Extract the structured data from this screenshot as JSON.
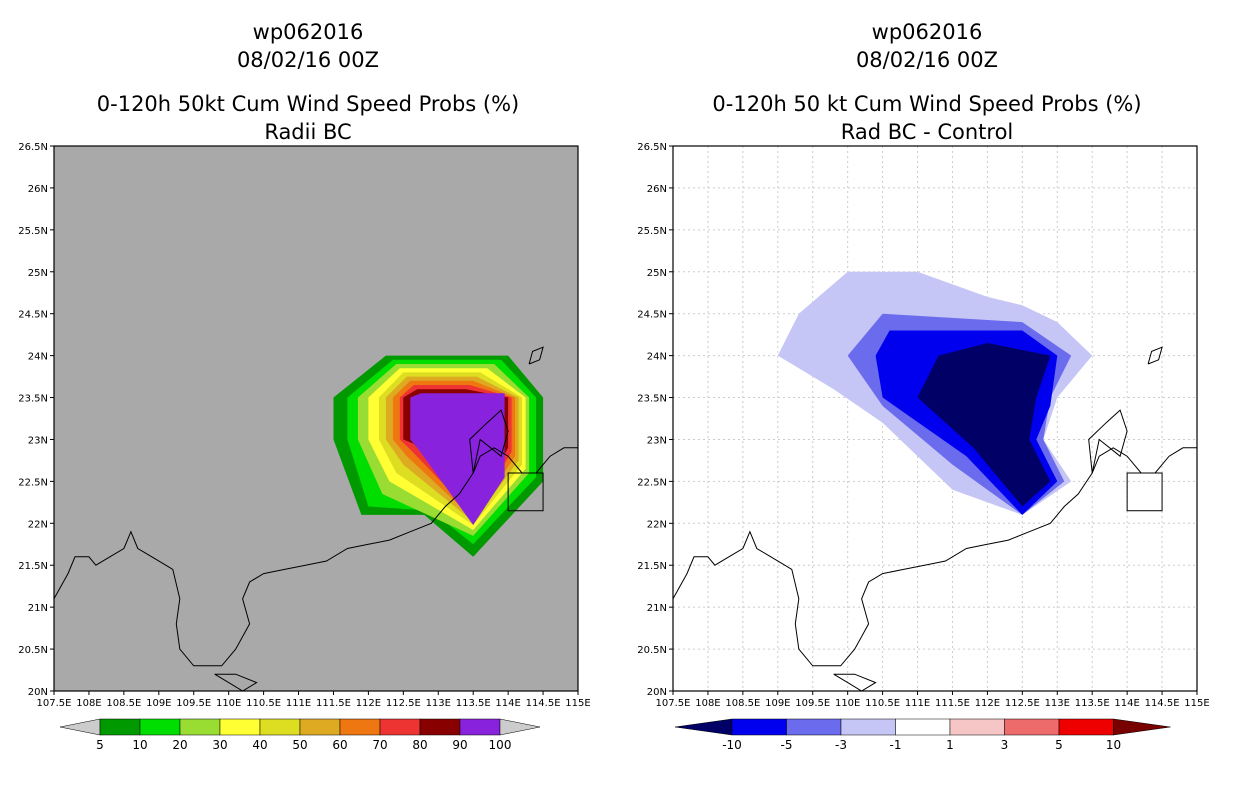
{
  "chart_data": [
    {
      "type": "filled-contour-map",
      "storm_id": "wp062016",
      "date": "08/02/16 00Z",
      "title": "0-120h 50kt Cum Wind Speed Probs (%)",
      "subtitle": "Radii BC",
      "background": "#a9a9a9",
      "x_ticks": [
        "107.5E",
        "108E",
        "108.5E",
        "109E",
        "109.5E",
        "110E",
        "110.5E",
        "111E",
        "111.5E",
        "112E",
        "112.5E",
        "113E",
        "113.5E",
        "114E",
        "114.5E",
        "115E"
      ],
      "y_ticks": [
        "20N",
        "20.5N",
        "21N",
        "21.5N",
        "22N",
        "22.5N",
        "23N",
        "23.5N",
        "24N",
        "24.5N",
        "25N",
        "25.5N",
        "26N",
        "26.5N"
      ],
      "xlim": [
        107.5,
        115
      ],
      "ylim": [
        20,
        26.5
      ],
      "levels": [
        "5",
        "10",
        "20",
        "30",
        "40",
        "50",
        "60",
        "70",
        "80",
        "90",
        "100"
      ],
      "colors": [
        "#cccccc",
        "#009900",
        "#00dd00",
        "#99dd33",
        "#ffff33",
        "#dddd22",
        "#ddaa22",
        "#ee7711",
        "#ee3333",
        "#880000",
        "#8822dd",
        "#cccccc"
      ],
      "contours": [
        {
          "level": 5,
          "points": [
            [
              111.5,
              23.5
            ],
            [
              112.25,
              24
            ],
            [
              114,
              24
            ],
            [
              114.5,
              23.5
            ],
            [
              114.5,
              22.5
            ],
            [
              113.5,
              21.6
            ],
            [
              112.8,
              22.1
            ],
            [
              111.9,
              22.1
            ],
            [
              111.5,
              23
            ]
          ]
        },
        {
          "level": 10,
          "points": [
            [
              111.7,
              23.5
            ],
            [
              112.35,
              23.95
            ],
            [
              113.9,
              23.95
            ],
            [
              114.4,
              23.5
            ],
            [
              114.4,
              22.55
            ],
            [
              113.5,
              21.75
            ],
            [
              112.9,
              22.15
            ],
            [
              112.0,
              22.2
            ],
            [
              111.7,
              23
            ]
          ]
        },
        {
          "level": 20,
          "points": [
            [
              111.85,
              23.5
            ],
            [
              112.4,
              23.9
            ],
            [
              113.8,
              23.9
            ],
            [
              114.3,
              23.5
            ],
            [
              114.3,
              22.6
            ],
            [
              113.5,
              21.85
            ],
            [
              112.2,
              22.35
            ],
            [
              111.85,
              23
            ]
          ]
        },
        {
          "level": 30,
          "points": [
            [
              112.0,
              23.5
            ],
            [
              112.45,
              23.85
            ],
            [
              113.7,
              23.85
            ],
            [
              114.25,
              23.5
            ],
            [
              114.25,
              22.65
            ],
            [
              113.5,
              21.92
            ],
            [
              112.3,
              22.5
            ],
            [
              112.0,
              23
            ]
          ]
        },
        {
          "level": 40,
          "points": [
            [
              112.15,
              23.5
            ],
            [
              112.5,
              23.8
            ],
            [
              113.6,
              23.8
            ],
            [
              114.2,
              23.5
            ],
            [
              114.2,
              22.7
            ],
            [
              113.5,
              21.98
            ],
            [
              112.4,
              22.6
            ],
            [
              112.15,
              23
            ]
          ]
        },
        {
          "level": 50,
          "points": [
            [
              112.25,
              23.5
            ],
            [
              112.55,
              23.75
            ],
            [
              113.55,
              23.75
            ],
            [
              114.15,
              23.5
            ],
            [
              114.15,
              22.75
            ],
            [
              113.5,
              22.02
            ],
            [
              112.5,
              22.7
            ],
            [
              112.25,
              23
            ]
          ]
        },
        {
          "level": 60,
          "points": [
            [
              112.35,
              23.5
            ],
            [
              112.6,
              23.7
            ],
            [
              113.5,
              23.7
            ],
            [
              114.1,
              23.5
            ],
            [
              114.1,
              22.8
            ],
            [
              113.5,
              22.06
            ],
            [
              112.55,
              22.8
            ],
            [
              112.35,
              23
            ]
          ]
        },
        {
          "level": 70,
          "points": [
            [
              112.45,
              23.5
            ],
            [
              112.65,
              23.65
            ],
            [
              113.45,
              23.65
            ],
            [
              114.05,
              23.5
            ],
            [
              114.05,
              22.85
            ],
            [
              113.5,
              22.1
            ],
            [
              112.6,
              22.88
            ],
            [
              112.45,
              23
            ]
          ]
        },
        {
          "level": 80,
          "points": [
            [
              112.5,
              23.5
            ],
            [
              112.7,
              23.6
            ],
            [
              113.4,
              23.6
            ],
            [
              114.0,
              23.5
            ],
            [
              114.0,
              22.9
            ],
            [
              113.5,
              22.15
            ],
            [
              112.65,
              22.95
            ],
            [
              112.5,
              23
            ]
          ]
        },
        {
          "level": 90,
          "points": [
            [
              112.6,
              23.5
            ],
            [
              112.75,
              23.55
            ],
            [
              113.3,
              23.55
            ],
            [
              113.95,
              23.55
            ],
            [
              113.95,
              22.55
            ],
            [
              113.5,
              21.98
            ],
            [
              112.7,
              22.9
            ],
            [
              112.6,
              23
            ]
          ]
        }
      ],
      "colorbar_labels": [
        "5",
        "10",
        "20",
        "30",
        "40",
        "50",
        "60",
        "70",
        "80",
        "90",
        "100"
      ]
    },
    {
      "type": "filled-contour-map",
      "storm_id": "wp062016",
      "date": "08/02/16 00Z",
      "title": "0-120h 50 kt Cum Wind Speed Probs (%)",
      "subtitle": "Rad BC - Control",
      "background": "#ffffff",
      "x_ticks": [
        "107.5E",
        "108E",
        "108.5E",
        "109E",
        "109.5E",
        "110E",
        "110.5E",
        "111E",
        "111.5E",
        "112E",
        "112.5E",
        "113E",
        "113.5E",
        "114E",
        "114.5E",
        "115E"
      ],
      "y_ticks": [
        "20N",
        "20.5N",
        "21N",
        "21.5N",
        "22N",
        "22.5N",
        "23N",
        "23.5N",
        "24N",
        "24.5N",
        "25N",
        "25.5N",
        "26N",
        "26.5N"
      ],
      "xlim": [
        107.5,
        115
      ],
      "ylim": [
        20,
        26.5
      ],
      "levels": [
        "-10",
        "-5",
        "-3",
        "-1",
        "1",
        "3",
        "5",
        "10"
      ],
      "colors": [
        "#000066",
        "#0000ee",
        "#6b6bee",
        "#c6c6f6",
        "#ffffff",
        "#f6c6c6",
        "#ee6b6b",
        "#ee0000",
        "#770000"
      ],
      "contours": [
        {
          "level": -1,
          "points": [
            [
              109.0,
              24
            ],
            [
              109.3,
              24.5
            ],
            [
              110.0,
              25
            ],
            [
              111.0,
              25
            ],
            [
              112.0,
              24.7
            ],
            [
              112.5,
              24.6
            ],
            [
              113.0,
              24.4
            ],
            [
              113.5,
              24
            ],
            [
              113.0,
              23.5
            ],
            [
              112.8,
              23.0
            ],
            [
              113.2,
              22.5
            ],
            [
              112.5,
              22.1
            ],
            [
              111.5,
              22.4
            ],
            [
              110.5,
              23.2
            ],
            [
              109.8,
              23.6
            ]
          ]
        },
        {
          "level": -3,
          "points": [
            [
              110.0,
              24
            ],
            [
              110.5,
              24.5
            ],
            [
              112.5,
              24.4
            ],
            [
              113.2,
              24
            ],
            [
              112.9,
              23.5
            ],
            [
              112.8,
              23.0
            ],
            [
              113.1,
              22.5
            ],
            [
              112.5,
              22.1
            ],
            [
              111.5,
              22.7
            ],
            [
              110.5,
              23.4
            ]
          ]
        },
        {
          "level": -5,
          "points": [
            [
              110.4,
              24
            ],
            [
              110.6,
              24.3
            ],
            [
              112.5,
              24.3
            ],
            [
              113.0,
              24
            ],
            [
              112.9,
              23.4
            ],
            [
              112.7,
              23.0
            ],
            [
              113.0,
              22.5
            ],
            [
              112.5,
              22.1
            ],
            [
              111.7,
              22.8
            ],
            [
              110.5,
              23.5
            ]
          ]
        },
        {
          "level": -10,
          "points": [
            [
              111.0,
              23.5
            ],
            [
              111.3,
              24
            ],
            [
              112.0,
              24.15
            ],
            [
              112.9,
              24
            ],
            [
              112.7,
              23.5
            ],
            [
              112.6,
              23.0
            ],
            [
              112.9,
              22.5
            ],
            [
              112.5,
              22.2
            ],
            [
              111.8,
              22.9
            ]
          ]
        }
      ],
      "colorbar_labels": [
        "-10",
        "-5",
        "-3",
        "-1",
        "1",
        "3",
        "5",
        "10"
      ]
    }
  ]
}
